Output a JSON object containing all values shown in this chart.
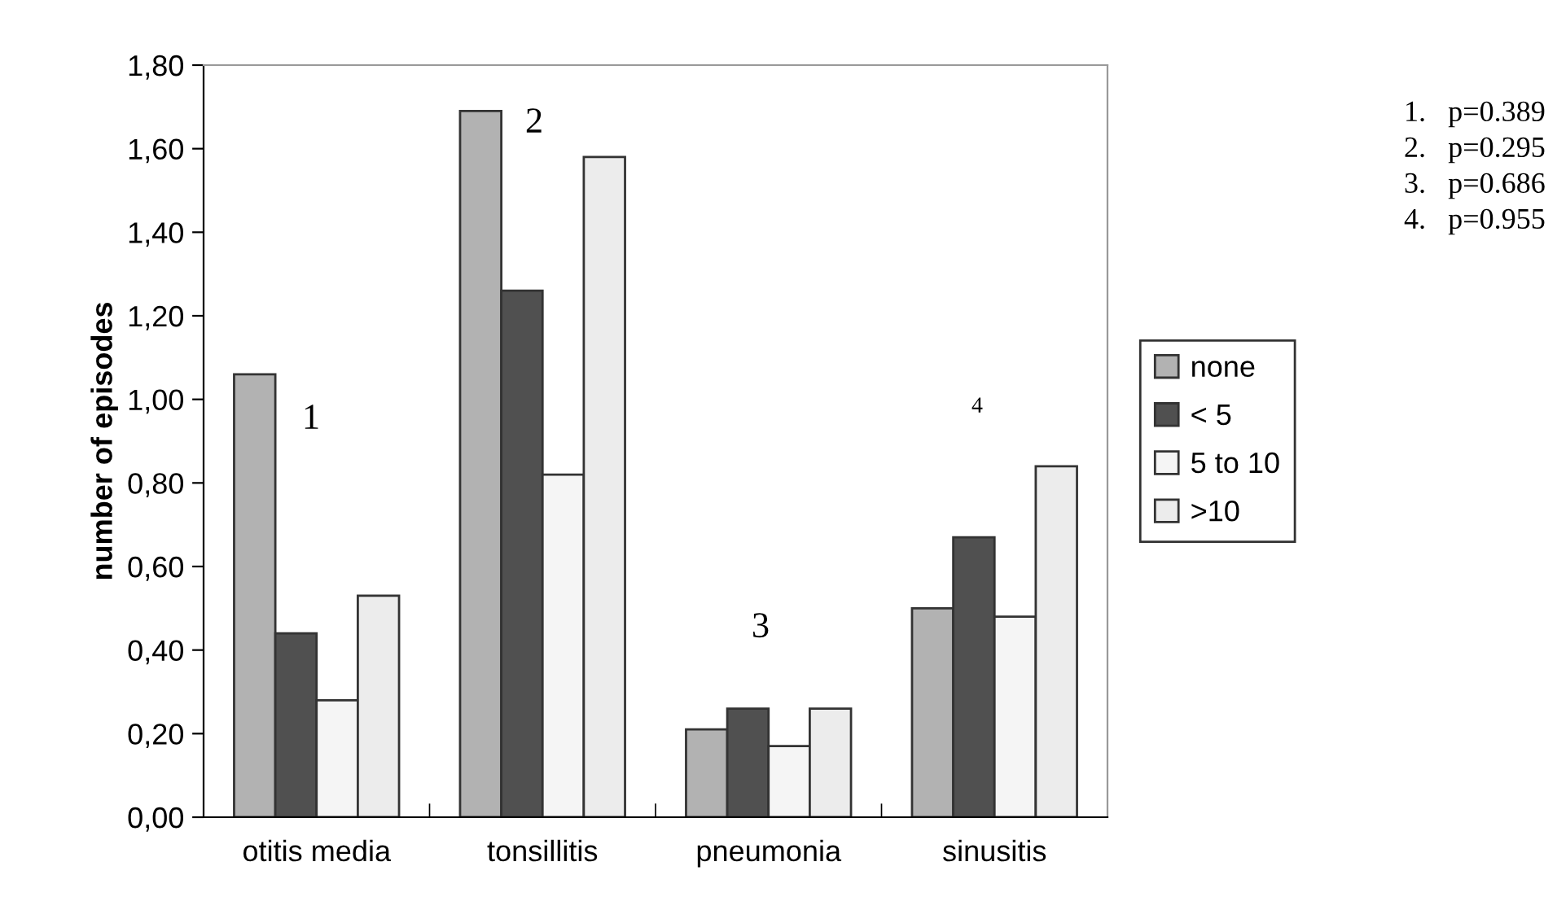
{
  "chart_data": {
    "type": "bar",
    "ylabel": "number of episodes",
    "categories": [
      "otitis media",
      "tonsillitis",
      "pneumonia",
      "sinusitis"
    ],
    "series": [
      {
        "name": "none",
        "color": "#b2b2b2",
        "values": [
          1.06,
          1.69,
          0.21,
          0.5
        ]
      },
      {
        "name": "< 5",
        "color": "#505050",
        "values": [
          0.44,
          1.26,
          0.26,
          0.67
        ]
      },
      {
        "name": "5 to 10",
        "color": "#f5f5f5",
        "values": [
          0.28,
          0.82,
          0.17,
          0.48
        ]
      },
      {
        "name": ">10",
        "color": "#ececec",
        "values": [
          0.53,
          1.58,
          0.26,
          0.84
        ]
      }
    ],
    "ylim": [
      0,
      1.8
    ],
    "yticks": [
      {
        "value": 0,
        "label": "0,00"
      },
      {
        "value": 0.2,
        "label": "0,20"
      },
      {
        "value": 0.4,
        "label": "0,40"
      },
      {
        "value": 0.6,
        "label": "0,60"
      },
      {
        "value": 0.8,
        "label": "0,80"
      },
      {
        "value": 1.0,
        "label": "1,00"
      },
      {
        "value": 1.2,
        "label": "1,20"
      },
      {
        "value": 1.4,
        "label": "1,40"
      },
      {
        "value": 1.6,
        "label": "1,60"
      },
      {
        "value": 1.8,
        "label": "1,80"
      }
    ],
    "grid": false,
    "legend": "right",
    "annotations": [
      "1",
      "2",
      "3",
      "4",
      "1.   p=0.389",
      "2.   p=0.295",
      "3.   p=0.686",
      "4.   p=0.955"
    ]
  }
}
